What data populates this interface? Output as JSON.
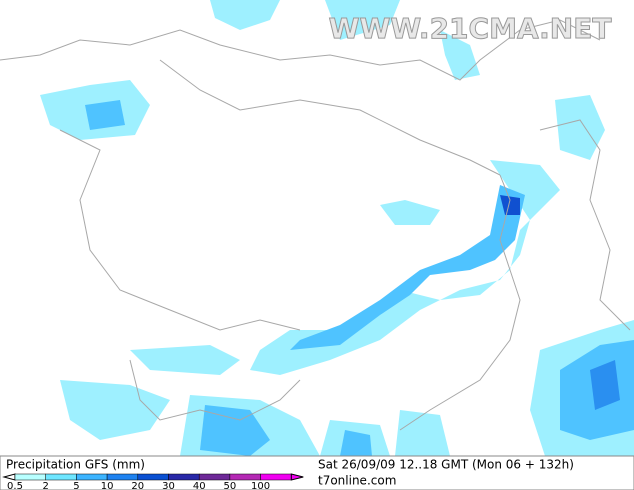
{
  "watermark": "WWW.21CMA.NET",
  "legend": {
    "title": "Precipitation GFS (mm)",
    "labels": [
      "0.5",
      "2",
      "5",
      "10",
      "20",
      "30",
      "40",
      "50",
      "100"
    ],
    "colors": [
      "#b8ffff",
      "#6ee6ff",
      "#3cb4ff",
      "#1e82f0",
      "#0a50d2",
      "#2828a8",
      "#6e2898",
      "#b428b4",
      "#f000f0"
    ]
  },
  "valid_time": "Sat 26/09/09 12..18 GMT (Mon 06 + 132h)",
  "source": "t7online.com"
}
